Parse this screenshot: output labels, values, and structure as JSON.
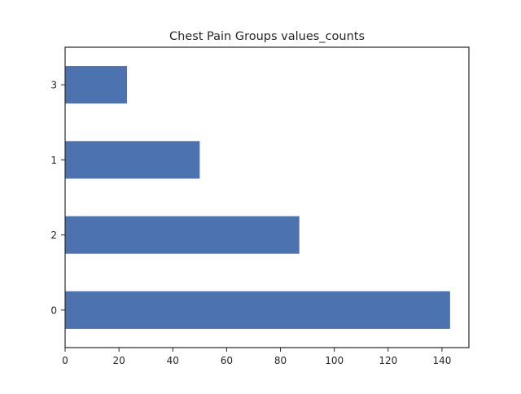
{
  "chart_data": {
    "type": "bar",
    "orientation": "horizontal",
    "title": "Chest Pain Groups values_counts",
    "xlabel": "",
    "ylabel": "",
    "categories": [
      "0",
      "2",
      "1",
      "3"
    ],
    "values": [
      143,
      87,
      50,
      23
    ],
    "xlim": [
      0,
      150
    ],
    "xticks": [
      "0",
      "20",
      "40",
      "60",
      "80",
      "100",
      "120",
      "140"
    ],
    "xtick_values": [
      0,
      20,
      40,
      60,
      80,
      100,
      120,
      140
    ],
    "grid": false,
    "legend": "none",
    "colors": {
      "bar": "#4c72b0",
      "axes": "#262626",
      "text": "#262626"
    }
  }
}
